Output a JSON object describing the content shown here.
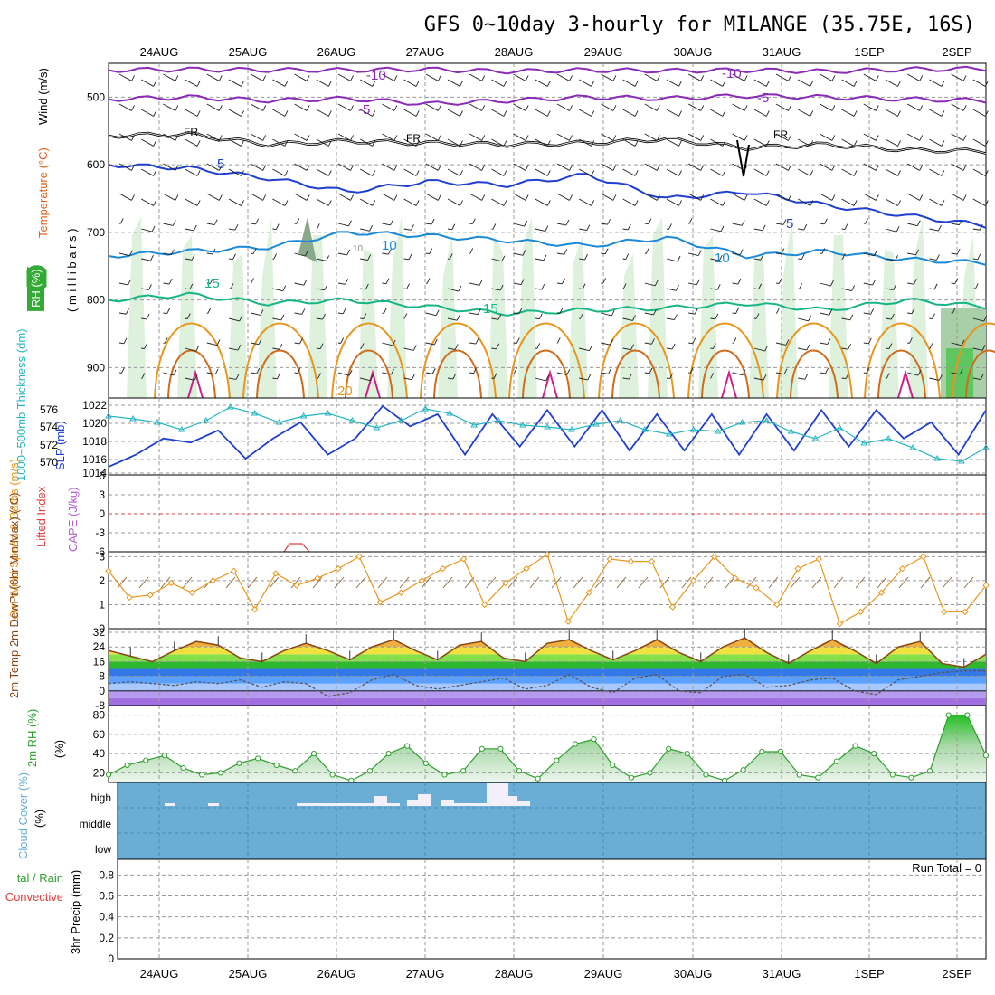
{
  "title": "GFS 0~10day 3-hourly for MILANGE (35.75E, 16S)",
  "dates": [
    "24AUG",
    "25AUG",
    "26AUG",
    "27AUG",
    "28AUG",
    "29AUG",
    "30AUG",
    "31AUG",
    "1SEP",
    "2SEP"
  ],
  "chart_data": [
    {
      "type": "line",
      "panel": "upper-air",
      "ylabel_parts": {
        "wind": "Wind (m/s)",
        "temp": "Temperature (°C)",
        "mb": "( m i l l i b a r s )",
        "rh": "RH (%)"
      },
      "yticks": [
        "500",
        "600",
        "700",
        "800",
        "900"
      ],
      "ylim": [
        450,
        945
      ],
      "isotherm_labels": [
        "-10",
        "-10",
        "-5",
        "-5",
        "FR",
        "FR",
        "FR",
        "5",
        "5",
        "10",
        "10",
        "10",
        "15",
        "15",
        "20"
      ],
      "series": [
        {
          "name": "-10",
          "color": "#8a2bb8",
          "p": [
            460,
            459,
            460,
            460,
            459,
            462,
            460,
            461,
            460,
            462,
            459,
            458
          ]
        },
        {
          "name": "-5",
          "color": "#8a2bb8",
          "p": [
            503,
            500,
            505,
            502,
            510,
            505,
            500,
            502,
            498,
            500,
            503,
            505
          ]
        },
        {
          "name": "FR",
          "color": "#000000",
          "p": [
            557,
            555,
            570,
            565,
            568,
            570,
            568,
            562,
            575,
            570,
            578,
            580
          ]
        },
        {
          "name": "5",
          "color": "#1f3fd0",
          "p": [
            600,
            605,
            620,
            640,
            625,
            630,
            615,
            650,
            640,
            660,
            675,
            690
          ]
        },
        {
          "name": "10",
          "color": "#1a8ad8",
          "p": [
            735,
            728,
            722,
            700,
            705,
            712,
            720,
            708,
            735,
            728,
            740,
            745
          ]
        },
        {
          "name": "15",
          "color": "#16b585",
          "p": [
            800,
            792,
            805,
            800,
            810,
            820,
            815,
            812,
            805,
            815,
            800,
            810
          ]
        }
      ]
    },
    {
      "type": "line",
      "panel": "thickness-slp",
      "ylabel_left": "1000~500mb Thickness (dm)",
      "ylabel_right": "SLP (mb)",
      "yticks_left": [
        "576",
        "574",
        "572",
        "570"
      ],
      "yticks_right": [
        "1022",
        "1020",
        "1018",
        "1016",
        "1014"
      ],
      "series": [
        {
          "name": "SLP",
          "color": "#1f3fd0",
          "values": [
            1014.5,
            1016,
            1018,
            1017.5,
            1019,
            1015.5,
            1018,
            1020,
            1016,
            1018,
            1022,
            1019.5,
            1021,
            1016,
            1021,
            1017,
            1021.5,
            1017,
            1021.5,
            1016.5,
            1021,
            1016.5,
            1021,
            1016,
            1021,
            1016.5,
            1021.5,
            1017,
            1021.5,
            1018,
            1020,
            1016,
            1021.5
          ]
        },
        {
          "name": "Thickness",
          "color": "#25b5c0",
          "values": [
            575.5,
            575.2,
            574.8,
            574,
            575,
            576.5,
            575.8,
            574.8,
            575.5,
            575.8,
            575,
            574.2,
            575,
            576.3,
            575.8,
            574.5,
            575,
            574.5,
            574.3,
            574,
            574.6,
            575,
            574,
            573.5,
            574,
            573.8,
            574.8,
            575,
            573.8,
            573,
            574.2,
            572.5,
            573,
            572,
            570.8,
            570.5,
            572
          ]
        }
      ]
    },
    {
      "type": "line",
      "panel": "lifted-cape",
      "ylabel_left": "Lifted Index",
      "ylabel_right": "CAPE (J/kg)",
      "yticks": [
        "6",
        "3",
        "0",
        "-3",
        "-6"
      ]
    },
    {
      "type": "line",
      "panel": "wind-10m",
      "ylabel": "10m Wind Speed & Barbs (m/s)",
      "yticks": [
        "3",
        "2",
        "1",
        "0"
      ],
      "ylim": [
        0,
        3.2
      ],
      "series": [
        {
          "name": "Speed",
          "color": "#e8961e",
          "values": [
            2.4,
            1.3,
            1.4,
            1.9,
            1.5,
            2.0,
            2.4,
            0.8,
            2.3,
            1.8,
            2.1,
            2.5,
            3.0,
            1.1,
            1.5,
            2.0,
            2.5,
            2.9,
            1.0,
            1.9,
            2.5,
            3.1,
            0.3,
            1.5,
            2.9,
            2.8,
            2.8,
            0.9,
            2.0,
            3.0,
            2.1,
            1.7,
            1.0,
            2.5,
            2.9,
            0.2,
            0.7,
            1.5,
            2.5,
            3.0,
            0.7,
            0.7,
            1.8
          ]
        }
      ]
    },
    {
      "type": "area",
      "panel": "temp-2m",
      "ylabel": "2m Temp 2m DewPt (6hr Min/Max) (°C)",
      "yticks": [
        "32",
        "24",
        "16",
        "8",
        "0",
        "-8"
      ],
      "ylim": [
        -8,
        34
      ],
      "series": [
        {
          "name": "Temp",
          "color": "#8b4513",
          "values": [
            22,
            19,
            16,
            22,
            27,
            25,
            18,
            16,
            22,
            26,
            22,
            17,
            24,
            28,
            22,
            17,
            25,
            27,
            18,
            16,
            26,
            28,
            22,
            17,
            22,
            28,
            21,
            16,
            24,
            29,
            21,
            15,
            22,
            28,
            22,
            15,
            24,
            27,
            15,
            13,
            20
          ]
        },
        {
          "name": "DewPt",
          "color": "#555555",
          "values": [
            4,
            5,
            4,
            3,
            5,
            4,
            6,
            2,
            5,
            4,
            -3,
            -1,
            6,
            9,
            3,
            1,
            3,
            5,
            7,
            1,
            3,
            9,
            2,
            -1,
            7,
            9,
            0,
            -1,
            8,
            9,
            2,
            3,
            6,
            7,
            0,
            -2,
            6,
            8,
            10,
            11,
            11
          ]
        }
      ]
    },
    {
      "type": "area",
      "panel": "rh-2m",
      "ylabel": "2m RH (%)",
      "yticks": [
        "80",
        "60",
        "40",
        "20"
      ],
      "ylim": [
        10,
        90
      ],
      "series": [
        {
          "name": "RH",
          "color": "#2ea02e",
          "values": [
            18,
            28,
            33,
            38,
            25,
            18,
            20,
            30,
            35,
            28,
            22,
            40,
            18,
            12,
            22,
            40,
            48,
            30,
            18,
            22,
            45,
            45,
            22,
            14,
            33,
            50,
            55,
            28,
            15,
            20,
            45,
            40,
            18,
            12,
            23,
            42,
            42,
            18,
            15,
            32,
            48,
            40,
            18,
            15,
            22,
            80,
            80,
            38
          ]
        }
      ]
    },
    {
      "type": "bar",
      "panel": "cloud",
      "ylabel": "Cloud Cover (%)",
      "levels": [
        "high",
        "middle",
        "low"
      ]
    },
    {
      "type": "bar",
      "panel": "precip",
      "ylabel_left": "Total / Rain Convective",
      "ylabel": "3hr Precip (mm)",
      "yticks": [
        "0.8",
        "0.6",
        "0.4",
        "0.2",
        "0"
      ],
      "run_total": "Run Total = 0"
    }
  ]
}
